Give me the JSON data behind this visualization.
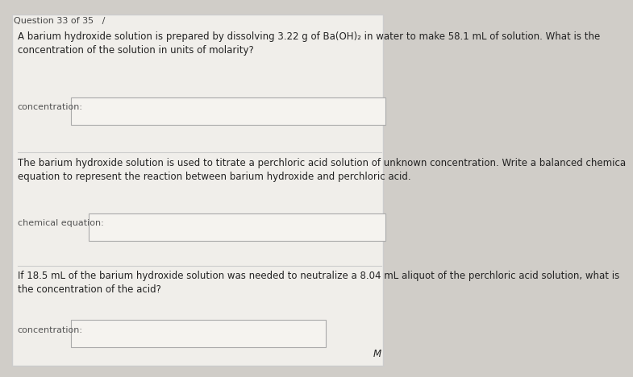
{
  "bg_color": "#d0cdc8",
  "panel_color": "#f0eeea",
  "panel_border": "#cccccc",
  "text_color": "#222222",
  "label_color": "#555555",
  "box_fill": "#f5f3ef",
  "box_border": "#aaaaaa",
  "header_text": "Question 33 of 35   /",
  "para1": "A barium hydroxide solution is prepared by dissolving 3.22 g of Ba(OH)₂ in water to make 58.1 mL of solution. What is the\nconcentration of the solution in units of molarity?",
  "label1": "concentration:",
  "para2": "The barium hydroxide solution is used to titrate a perchloric acid solution of unknown concentration. Write a balanced chemica\nequation to represent the reaction between barium hydroxide and perchloric acid.",
  "label2": "chemical equation:",
  "para3": "If 18.5 mL of the barium hydroxide solution was needed to neutralize a 8.04 mL aliquot of the perchloric acid solution, what is\nthe concentration of the acid?",
  "label3": "concentration:",
  "footer": "M",
  "font_size_body": 8.5,
  "font_size_label": 8.0,
  "font_size_header": 8.0
}
